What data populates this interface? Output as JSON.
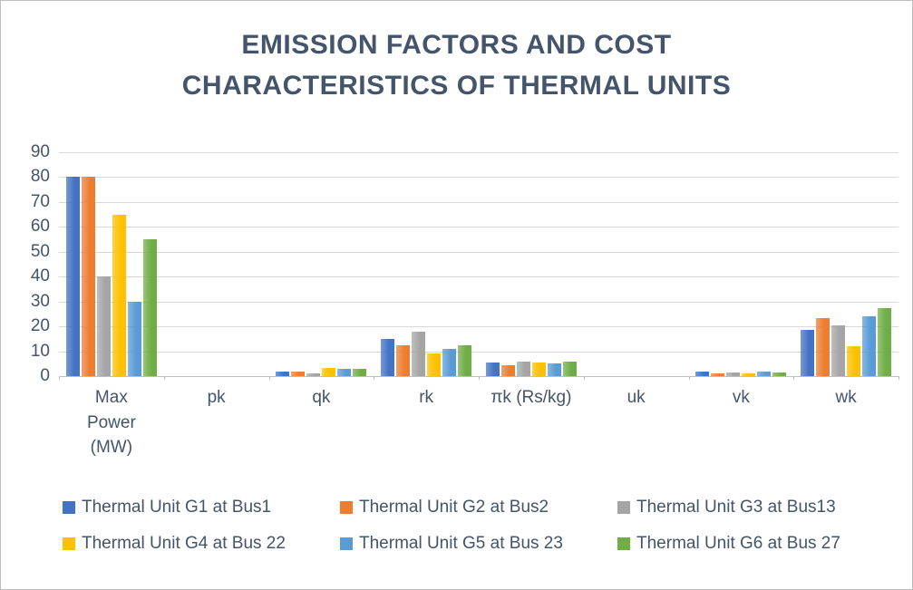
{
  "window": {
    "background": "#FFFFFF",
    "border_color": "#BDBDBD"
  },
  "colors": {
    "title_text": "#44546A",
    "axis_text": "#44546A",
    "legend_text": "#44546A",
    "gridline": "#D9D9D9",
    "axis_line": "#BFBFBF"
  },
  "chart_data": {
    "type": "bar",
    "title": "EMISSION FACTORS AND COST CHARACTERISTICS OF THERMAL UNITS",
    "categories": [
      "Max\nPower\n(MW)",
      "pk",
      "qk",
      "rk",
      "πk (Rs/kg)",
      "uk",
      "vk",
      "wk"
    ],
    "series": [
      {
        "name": "Thermal Unit G1 at Bus1",
        "color": "#4472C4",
        "values": [
          80,
          0,
          2,
          15,
          5.5,
          0,
          2,
          18.5
        ]
      },
      {
        "name": "Thermal Unit G2 at Bus2",
        "color": "#ED7D31",
        "values": [
          80,
          0,
          1.75,
          12.5,
          4.5,
          0,
          1,
          23.5
        ]
      },
      {
        "name": "Thermal Unit G3 at Bus13",
        "color": "#A5A5A5",
        "values": [
          40,
          0,
          1,
          18,
          6,
          0,
          1.5,
          20.5
        ]
      },
      {
        "name": "Thermal Unit G4 at Bus 22",
        "color": "#FFC000",
        "values": [
          65,
          0,
          3.25,
          9,
          5.5,
          0,
          1,
          12
        ]
      },
      {
        "name": "Thermal Unit G5 at Bus 23",
        "color": "#5B9BD5",
        "values": [
          30,
          0,
          3,
          11,
          5,
          0,
          2,
          24
        ]
      },
      {
        "name": "Thermal Unit G6 at Bus 27",
        "color": "#70AD47",
        "values": [
          55,
          0,
          3,
          12.5,
          6,
          0,
          1.5,
          27.5
        ]
      }
    ],
    "y_axis": {
      "min": 0,
      "max": 90,
      "step": 10
    },
    "xlabel": "",
    "ylabel": "",
    "grid": "horizontal",
    "legend_position": "bottom",
    "legend_items_per_row": 3
  }
}
